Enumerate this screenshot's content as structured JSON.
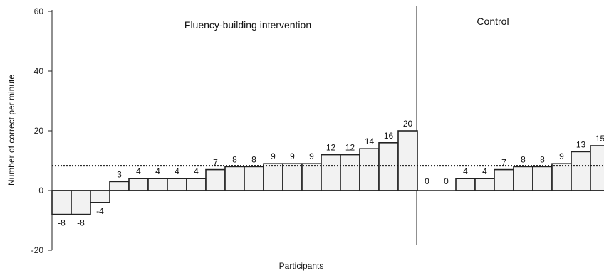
{
  "chart_data": {
    "type": "bar",
    "ylabel": "Number of correct per minute",
    "xlabel": "Participants",
    "ylim": [
      -20,
      60
    ],
    "yticks": [
      -20,
      0,
      20,
      40,
      60
    ],
    "reference_line": {
      "y": 8.3,
      "style": "dotted"
    },
    "groups": [
      {
        "name": "Fluency-building intervention",
        "values": [
          -8,
          -8,
          -4,
          3,
          4,
          4,
          4,
          4,
          7,
          8,
          8,
          9,
          9,
          9,
          12,
          12,
          14,
          16,
          20
        ]
      },
      {
        "name": "Control",
        "values": [
          0,
          0,
          4,
          4,
          7,
          8,
          8,
          9,
          13,
          15
        ]
      }
    ],
    "colors": {
      "bar_fill": "#f2f2f2",
      "bar_stroke": "#222222",
      "axis": "#222222"
    }
  }
}
